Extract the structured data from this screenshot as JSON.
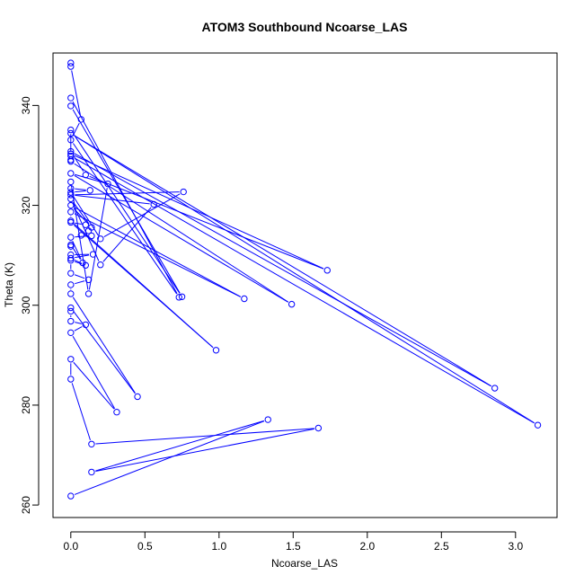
{
  "chart_data": {
    "type": "line",
    "title": "ATOM3 Southbound Ncoarse_LAS",
    "xlabel": "Ncoarse_LAS",
    "ylabel": "Theta (K)",
    "xlim": [
      -0.12,
      3.28
    ],
    "ylim": [
      257.5,
      350.5
    ],
    "x_ticks": [
      "0.0",
      "0.5",
      "1.0",
      "1.5",
      "2.0",
      "2.5",
      "3.0"
    ],
    "y_ticks": [
      "260",
      "280",
      "300",
      "320",
      "340"
    ],
    "grid": false,
    "legend": "none",
    "marker": "open-circle",
    "series": [
      {
        "color": "#0000ff",
        "points": [
          [
            0.0,
            348.5
          ],
          [
            0.0,
            347.8
          ],
          [
            0.07,
            337.2
          ],
          [
            0.0,
            333.1
          ],
          [
            0.73,
            301.6
          ],
          [
            0.0,
            341.5
          ],
          [
            0.0,
            339.9
          ],
          [
            0.75,
            301.7
          ],
          [
            0.0,
            335.1
          ],
          [
            0.0,
            329.9
          ],
          [
            3.15,
            276.0
          ],
          [
            0.0,
            334.4
          ],
          [
            2.86,
            283.4
          ],
          [
            0.0,
            330.8
          ],
          [
            0.1,
            326.1
          ],
          [
            1.73,
            307.0
          ],
          [
            0.0,
            330.3
          ],
          [
            0.0,
            329.1
          ],
          [
            0.0,
            328.8
          ],
          [
            1.49,
            300.2
          ],
          [
            0.0,
            326.4
          ],
          [
            0.25,
            324.3
          ],
          [
            0.12,
            302.3
          ],
          [
            0.0,
            324.7
          ],
          [
            0.0,
            323.4
          ],
          [
            0.13,
            323.0
          ],
          [
            0.0,
            322.6
          ],
          [
            0.2,
            313.3
          ],
          [
            0.76,
            322.7
          ],
          [
            0.0,
            322.1
          ],
          [
            0.56,
            320.2
          ],
          [
            0.2,
            308.1
          ],
          [
            0.0,
            321.3
          ],
          [
            0.14,
            315.6
          ],
          [
            0.0,
            320.0
          ],
          [
            1.17,
            301.3
          ],
          [
            0.0,
            318.7
          ],
          [
            0.0,
            316.9
          ],
          [
            0.98,
            291.0
          ],
          [
            0.0,
            316.6
          ],
          [
            0.1,
            316.1
          ],
          [
            0.12,
            314.9
          ],
          [
            0.07,
            314.0
          ],
          [
            0.14,
            313.9
          ],
          [
            0.0,
            313.6
          ],
          [
            0.08,
            308.5
          ],
          [
            0.0,
            312.1
          ],
          [
            0.0,
            311.8
          ],
          [
            0.0,
            310.1
          ],
          [
            0.15,
            310.2
          ],
          [
            0.0,
            309.4
          ],
          [
            0.1,
            308.0
          ],
          [
            0.0,
            309.0
          ],
          [
            0.0,
            306.4
          ],
          [
            0.12,
            305.1
          ],
          [
            0.0,
            304.1
          ],
          [
            0.0,
            302.3
          ],
          [
            0.45,
            281.7
          ],
          [
            0.0,
            299.5
          ],
          [
            0.0,
            298.8
          ],
          [
            0.0,
            296.8
          ],
          [
            0.1,
            296.1
          ],
          [
            0.0,
            294.5
          ],
          [
            0.31,
            278.6
          ],
          [
            0.0,
            289.2
          ],
          [
            0.0,
            285.2
          ],
          [
            0.14,
            272.2
          ],
          [
            1.67,
            275.4
          ],
          [
            0.14,
            266.6
          ],
          [
            1.33,
            277.1
          ],
          [
            0.0,
            261.8
          ]
        ]
      }
    ]
  }
}
